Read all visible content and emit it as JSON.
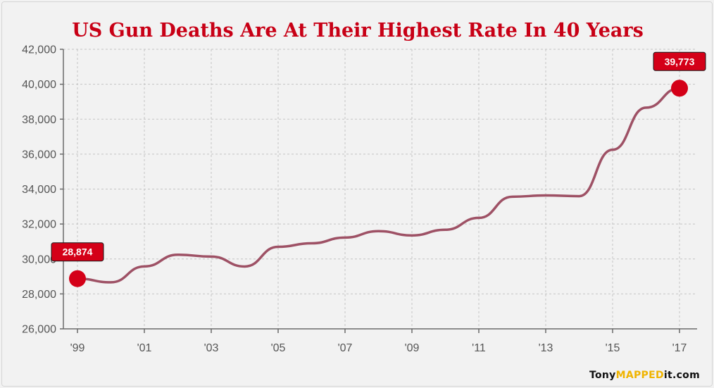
{
  "chart_data": {
    "type": "line",
    "title": "US Gun Deaths Are At Their Highest Rate In 40 Years",
    "x": [
      1999,
      2000,
      2001,
      2002,
      2003,
      2004,
      2005,
      2006,
      2007,
      2008,
      2009,
      2010,
      2011,
      2012,
      2013,
      2014,
      2015,
      2016,
      2017
    ],
    "x_tick_labels": [
      "'99",
      "'01",
      "'03",
      "'05",
      "'07",
      "'09",
      "'11",
      "'13",
      "'15",
      "'17"
    ],
    "x_tick_years": [
      1999,
      2001,
      2003,
      2005,
      2007,
      2009,
      2011,
      2013,
      2015,
      2017
    ],
    "series": [
      {
        "values": [
          28874,
          28663,
          29573,
          30242,
          30136,
          29569,
          30694,
          30896,
          31224,
          31593,
          31347,
          31672,
          32351,
          33563,
          33636,
          33594,
          36252,
          38658,
          39773
        ]
      }
    ],
    "y_ticks": [
      26000,
      28000,
      30000,
      32000,
      34000,
      36000,
      38000,
      40000,
      42000
    ],
    "y_tick_labels": [
      "26,000",
      "28,000",
      "30,000",
      "32,000",
      "34,000",
      "36,000",
      "38,000",
      "40,000",
      "42,000"
    ],
    "ylim": [
      26000,
      42000
    ],
    "xlim": [
      1999,
      2017
    ],
    "grid": true,
    "line_color": "#9e5165",
    "accent_color": "#d40018",
    "title_color": "#c80016",
    "callouts": [
      {
        "year": 1999,
        "label": "28,874"
      },
      {
        "year": 2017,
        "label": "39,773"
      }
    ]
  },
  "branding": {
    "prefix": "Tony",
    "highlight": "MAPPED",
    "suffix": "it.com"
  }
}
